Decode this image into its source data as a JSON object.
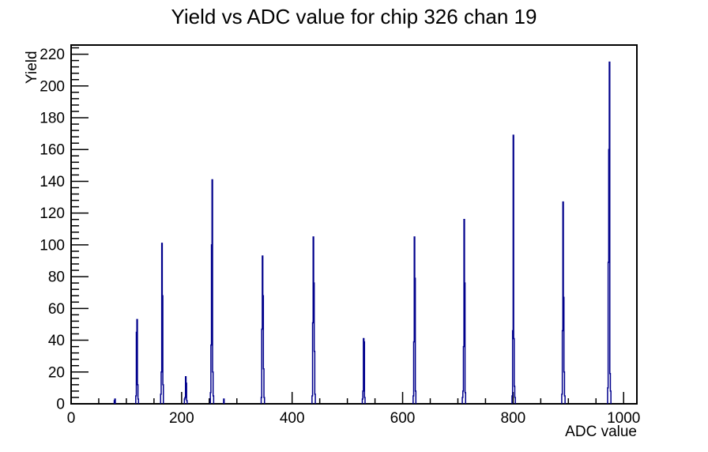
{
  "title": "Yield vs ADC value for chip 326 chan 19",
  "colors": {
    "background": "#ffffff",
    "frame": "#000000",
    "text": "#000000",
    "histogram_line": "#00008C"
  },
  "chart_data": {
    "type": "bar",
    "subtype": "histogram-spikes",
    "title": "Yield vs ADC value for chip 326 chan 19",
    "xlabel": "ADC value",
    "ylabel": "Yield",
    "xlim": [
      0,
      1024
    ],
    "ylim": [
      0,
      225.75
    ],
    "grid": false,
    "legend": "none",
    "x_major_ticks": [
      0,
      200,
      400,
      600,
      800,
      1000
    ],
    "x_minor_step": 50,
    "y_major_ticks": [
      0,
      20,
      40,
      60,
      80,
      100,
      120,
      140,
      160,
      180,
      200,
      220
    ],
    "y_minor_step": 4,
    "bin_width": 1,
    "main_peaks": [
      {
        "adc": 79,
        "yield": 3
      },
      {
        "adc": 119,
        "yield": 53
      },
      {
        "adc": 164,
        "yield": 101
      },
      {
        "adc": 207,
        "yield": 17
      },
      {
        "adc": 255,
        "yield": 141
      },
      {
        "adc": 276,
        "yield": 3
      },
      {
        "adc": 346,
        "yield": 93
      },
      {
        "adc": 438,
        "yield": 105
      },
      {
        "adc": 529,
        "yield": 41
      },
      {
        "adc": 621,
        "yield": 105
      },
      {
        "adc": 711,
        "yield": 116
      },
      {
        "adc": 800,
        "yield": 169
      },
      {
        "adc": 890,
        "yield": 127
      },
      {
        "adc": 974,
        "yield": 215
      }
    ],
    "bins": [
      [
        78,
        2
      ],
      [
        79,
        3
      ],
      [
        117,
        5
      ],
      [
        118,
        45
      ],
      [
        119,
        53
      ],
      [
        120,
        12
      ],
      [
        121,
        3
      ],
      [
        162,
        6
      ],
      [
        163,
        20
      ],
      [
        164,
        101
      ],
      [
        165,
        68
      ],
      [
        166,
        12
      ],
      [
        205,
        3
      ],
      [
        206,
        4
      ],
      [
        207,
        17
      ],
      [
        208,
        13
      ],
      [
        209,
        2
      ],
      [
        252,
        7
      ],
      [
        253,
        37
      ],
      [
        254,
        100
      ],
      [
        255,
        141
      ],
      [
        256,
        20
      ],
      [
        257,
        5
      ],
      [
        276,
        3
      ],
      [
        344,
        4
      ],
      [
        345,
        47
      ],
      [
        346,
        93
      ],
      [
        347,
        68
      ],
      [
        348,
        22
      ],
      [
        349,
        4
      ],
      [
        436,
        5
      ],
      [
        437,
        51
      ],
      [
        438,
        105
      ],
      [
        439,
        76
      ],
      [
        440,
        33
      ],
      [
        441,
        6
      ],
      [
        527,
        3
      ],
      [
        528,
        8
      ],
      [
        529,
        41
      ],
      [
        530,
        39
      ],
      [
        531,
        4
      ],
      [
        619,
        5
      ],
      [
        620,
        39
      ],
      [
        621,
        105
      ],
      [
        622,
        79
      ],
      [
        623,
        8
      ],
      [
        708,
        4
      ],
      [
        709,
        8
      ],
      [
        710,
        36
      ],
      [
        711,
        116
      ],
      [
        712,
        76
      ],
      [
        713,
        7
      ],
      [
        798,
        5
      ],
      [
        799,
        46
      ],
      [
        800,
        169
      ],
      [
        801,
        41
      ],
      [
        802,
        11
      ],
      [
        803,
        4
      ],
      [
        888,
        6
      ],
      [
        889,
        46
      ],
      [
        890,
        127
      ],
      [
        891,
        67
      ],
      [
        892,
        20
      ],
      [
        893,
        5
      ],
      [
        971,
        10
      ],
      [
        972,
        89
      ],
      [
        973,
        160
      ],
      [
        974,
        215
      ],
      [
        975,
        19
      ],
      [
        976,
        8
      ]
    ]
  }
}
